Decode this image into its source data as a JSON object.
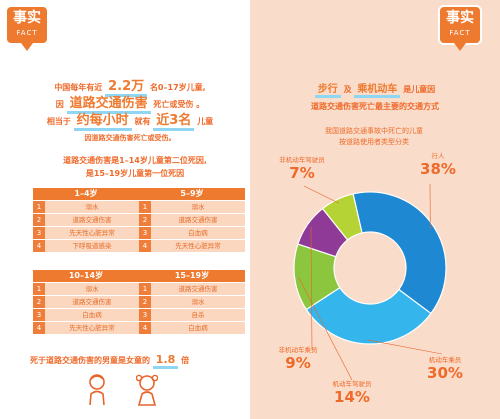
{
  "badge": {
    "zh": "事实",
    "en": "FACT"
  },
  "intro": {
    "line1_pre": "中国每年有近",
    "line1_num": "2.2万",
    "line1_post": "名0–17岁儿童,",
    "line2_pre": "因",
    "line2_hl": "道路交通伤害",
    "line2_post": "死亡或受伤 。",
    "line3_pre": "相当于",
    "line3_hl1": "约每小时",
    "line3_mid": "就有",
    "line3_hl2": "近3名",
    "line3_post": "儿童",
    "line4": "因道路交通伤害死亡或受伤。"
  },
  "subhead": {
    "line1": "道路交通伤害是1–14岁儿童第二位死因,",
    "line2": "是15–19岁儿童第一位死因"
  },
  "age_groups": [
    {
      "title": "1–4岁",
      "causes": [
        "溺水",
        "道路交通伤害",
        "先天性心脏异常",
        "下呼吸道感染"
      ],
      "highlight_rank": 2
    },
    {
      "title": "5–9岁",
      "causes": [
        "溺水",
        "道路交通伤害",
        "白血病",
        "先天性心脏异常"
      ],
      "highlight_rank": 2
    },
    {
      "title": "10–14岁",
      "causes": [
        "溺水",
        "道路交通伤害",
        "白血病",
        "先天性心脏异常"
      ],
      "highlight_rank": 2
    },
    {
      "title": "15–19岁",
      "causes": [
        "道路交通伤害",
        "溺水",
        "自杀",
        "白血病"
      ],
      "highlight_rank": 1
    }
  ],
  "rank_numbers": [
    "1",
    "2",
    "3",
    "4"
  ],
  "gender_note": {
    "pre": "死于道路交通伤害的男童是女童的",
    "value": "1.8",
    "post": "倍"
  },
  "pie_title": {
    "hl1": "步行",
    "and": "及",
    "hl2": "乘机动车",
    "post": "是儿童因",
    "line2": "道路交通伤害死亡最主要的交通方式"
  },
  "chart_data": {
    "type": "pie",
    "title": "",
    "subtitle_line1": "我国道路交通事故中死亡的儿童",
    "subtitle_line2": "按道路使用者类型分类",
    "categories": [
      "行人",
      "机动车乘员",
      "机动车驾驶员",
      "非机动车乘员",
      "非机动车驾驶员"
    ],
    "values": [
      38,
      30,
      14,
      9,
      7
    ],
    "labels": [
      "38%",
      "30%",
      "14%",
      "9%",
      "7%"
    ],
    "colors": [
      "#1e88d2",
      "#34b6ec",
      "#8cc63f",
      "#8e3a96",
      "#b5d334"
    ],
    "donut": true
  },
  "colors": {
    "orange": "#ee7a2f",
    "light_orange": "#fbd7bf",
    "peach_bg": "#f9dcc9",
    "highlight_blue": "#8ed6f2"
  }
}
